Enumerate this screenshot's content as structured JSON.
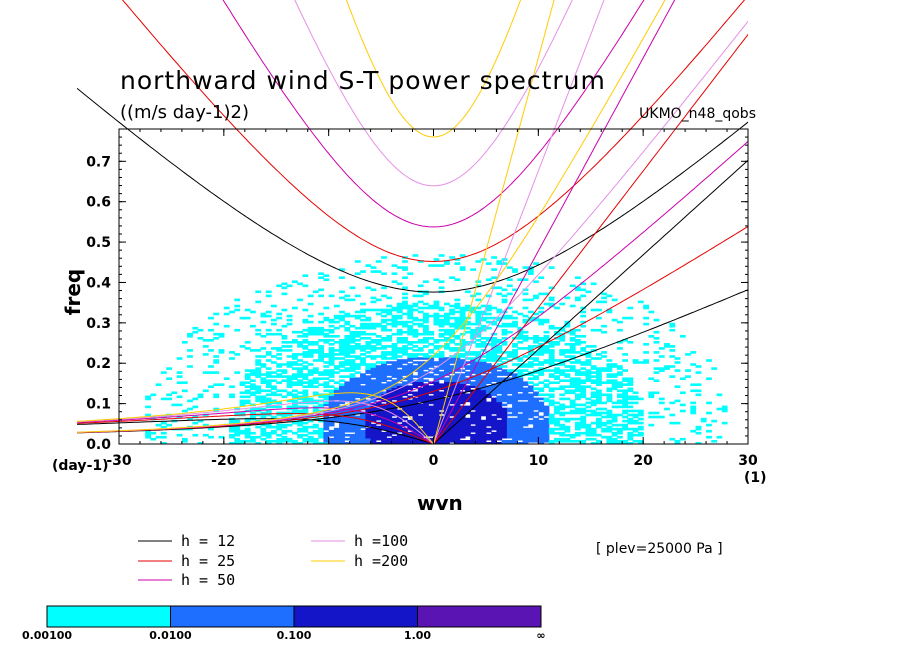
{
  "header": {
    "title": "northward wind S-T power spectrum",
    "subtitle": "((m/s day-1)2)",
    "model": "UKMO_n48_qobs",
    "plev": "[ plev=25000 Pa ]"
  },
  "chart_data": {
    "type": "heatmap",
    "title": "northward wind S-T power spectrum",
    "units": "((m/s day-1)2)",
    "xlabel": "wvn",
    "ylabel": "freq",
    "xunit": "(1)",
    "yunit": "(day-1)",
    "xlim": [
      -30,
      30
    ],
    "ylim": [
      0.0,
      0.78
    ],
    "xticks": [
      "-30",
      "-20",
      "-10",
      "0",
      "10",
      "20",
      "30"
    ],
    "yticks": [
      "0.0",
      "0.1",
      "0.2",
      "0.3",
      "0.4",
      "0.5",
      "0.6",
      "0.7"
    ],
    "dispersion_curves": [
      {
        "label": "h = 12",
        "h": 12,
        "color": "#000000"
      },
      {
        "label": "h = 25",
        "h": 25,
        "color": "#e60000"
      },
      {
        "label": "h = 50",
        "h": 50,
        "color": "#cc00aa"
      },
      {
        "label": "h =100",
        "h": 100,
        "color": "#e690e6"
      },
      {
        "label": "h =200",
        "h": 200,
        "color": "#ffcc00"
      }
    ],
    "colorbar": {
      "levels": [
        "0.00100",
        "0.0100",
        "0.100",
        "1.00",
        "∞"
      ],
      "colors": [
        "#00ffff",
        "#1e6eff",
        "#1414c8",
        "#5a14b4"
      ]
    },
    "power_regions": [
      {
        "level": 0,
        "x": [
          -21,
          18
        ],
        "y": [
          0.0,
          0.4
        ],
        "note": "broad cyan region"
      },
      {
        "level": 1,
        "x": [
          -12,
          10
        ],
        "y": [
          0.0,
          0.2
        ],
        "note": "blue core"
      },
      {
        "level": 2,
        "x": [
          -6,
          5
        ],
        "y": [
          0.0,
          0.16
        ],
        "note": "dark blue center"
      }
    ]
  }
}
